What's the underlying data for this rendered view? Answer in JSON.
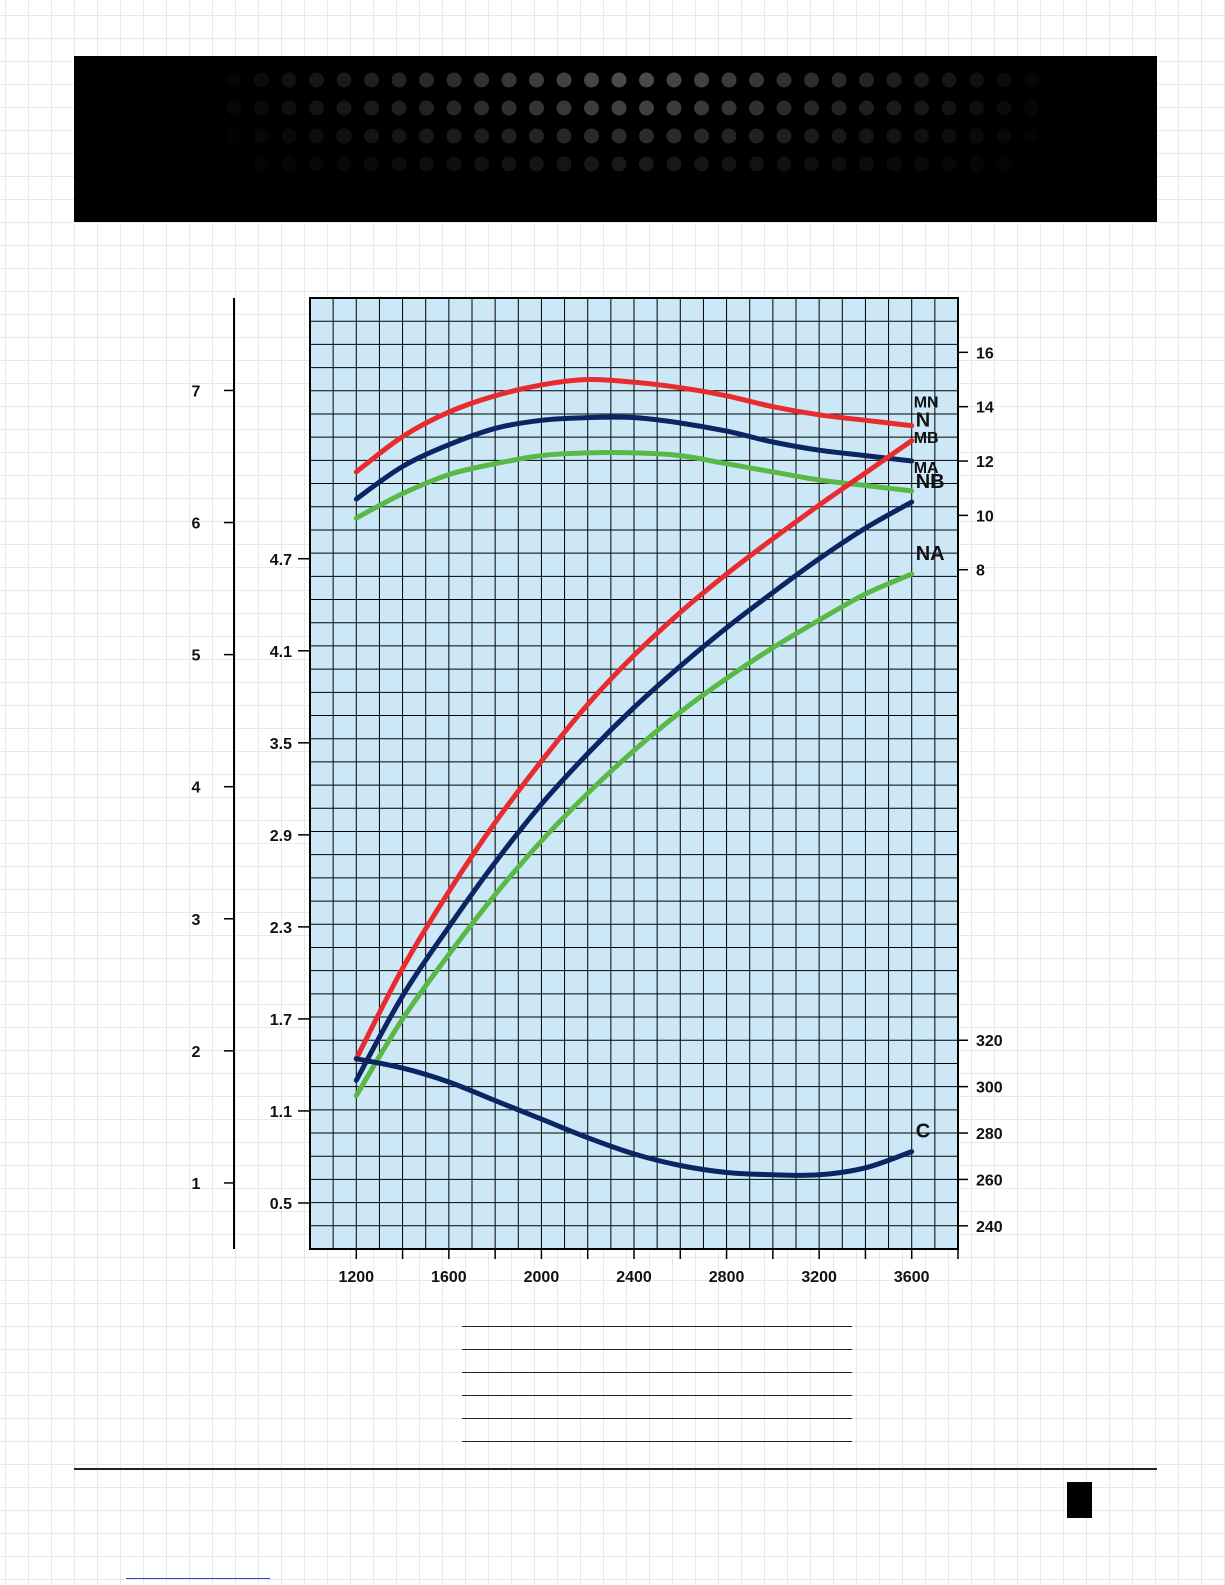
{
  "colors": {
    "red": "#e82b2e",
    "navy": "#0b2463",
    "green": "#58b947",
    "plot_background": "#cce8f7",
    "grid": "#000000"
  },
  "chart_data": {
    "type": "line",
    "title": "",
    "xlabel": "",
    "ylabel": "",
    "grid": true,
    "x_axis": {
      "range": [
        1000,
        3800
      ],
      "ticks": [
        1200,
        1600,
        2000,
        2400,
        2800,
        3200,
        3600
      ],
      "tick_labels": [
        "1200",
        "1600",
        "2000",
        "2400",
        "2800",
        "3200",
        "3600"
      ]
    },
    "axes": {
      "outer_left": {
        "range": [
          0.5,
          7.7
        ],
        "ticks": [
          1,
          2,
          3,
          4,
          5,
          6,
          7
        ],
        "tick_labels": [
          "1",
          "2",
          "3",
          "4",
          "5",
          "6",
          "7"
        ]
      },
      "inner_left": {
        "range": [
          0.2,
          6.4
        ],
        "ticks": [
          0.5,
          1.1,
          1.7,
          2.3,
          2.9,
          3.5,
          4.1,
          4.7
        ],
        "tick_labels": [
          "0.5",
          "1.1",
          "1.7",
          "2.3",
          "2.9",
          "3.5",
          "4.1",
          "4.7"
        ]
      },
      "right_torque": {
        "range": [
          -17,
          18
        ],
        "ticks": [
          8,
          10,
          12,
          14,
          16
        ],
        "tick_labels": [
          "8",
          "10",
          "12",
          "14",
          "16"
        ]
      },
      "right_consumption": {
        "range": [
          230,
          640
        ],
        "ticks": [
          240,
          260,
          280,
          300,
          320
        ],
        "tick_labels": [
          "240",
          "260",
          "280",
          "300",
          "320"
        ]
      }
    },
    "series": [
      {
        "name": "MN",
        "axis": "right_torque",
        "color": "#e82b2e",
        "label_size": "small",
        "x": [
          1200,
          1400,
          1600,
          1800,
          2000,
          2200,
          2400,
          2600,
          2800,
          3000,
          3200,
          3400,
          3600
        ],
        "values": [
          11.6,
          12.9,
          13.8,
          14.4,
          14.8,
          15.0,
          14.9,
          14.7,
          14.4,
          14.0,
          13.7,
          13.5,
          13.3
        ]
      },
      {
        "name": "MB",
        "axis": "right_torque",
        "color": "#0b2463",
        "label_size": "small",
        "x": [
          1200,
          1400,
          1600,
          1800,
          2000,
          2200,
          2400,
          2600,
          2800,
          3000,
          3200,
          3400,
          3600
        ],
        "values": [
          10.6,
          11.8,
          12.6,
          13.2,
          13.5,
          13.6,
          13.6,
          13.4,
          13.1,
          12.7,
          12.4,
          12.2,
          12.0
        ]
      },
      {
        "name": "MA",
        "axis": "right_torque",
        "color": "#58b947",
        "label_size": "small",
        "x": [
          1200,
          1400,
          1600,
          1800,
          2000,
          2200,
          2400,
          2600,
          2800,
          3000,
          3200,
          3400,
          3600
        ],
        "values": [
          9.9,
          10.8,
          11.5,
          11.9,
          12.2,
          12.3,
          12.3,
          12.2,
          11.9,
          11.6,
          11.3,
          11.1,
          10.9
        ]
      },
      {
        "name": "N",
        "axis": "inner_left",
        "color": "#e82b2e",
        "label_size": "large",
        "x": [
          1200,
          1400,
          1600,
          1800,
          2000,
          2200,
          2400,
          2600,
          2800,
          3000,
          3200,
          3400,
          3600
        ],
        "values": [
          1.44,
          2.03,
          2.53,
          2.98,
          3.38,
          3.75,
          4.07,
          4.35,
          4.6,
          4.83,
          5.05,
          5.26,
          5.47
        ]
      },
      {
        "name": "NB",
        "axis": "inner_left",
        "color": "#0b2463",
        "label_size": "large",
        "x": [
          1200,
          1400,
          1600,
          1800,
          2000,
          2200,
          2400,
          2600,
          2800,
          3000,
          3200,
          3400,
          3600
        ],
        "values": [
          1.3,
          1.85,
          2.3,
          2.72,
          3.1,
          3.43,
          3.73,
          4.0,
          4.25,
          4.48,
          4.7,
          4.9,
          5.07
        ]
      },
      {
        "name": "NA",
        "axis": "inner_left",
        "color": "#58b947",
        "label_size": "large",
        "x": [
          1200,
          1400,
          1600,
          1800,
          2000,
          2200,
          2400,
          2600,
          2800,
          3000,
          3200,
          3400,
          3600
        ],
        "values": [
          1.2,
          1.7,
          2.12,
          2.51,
          2.86,
          3.17,
          3.45,
          3.7,
          3.92,
          4.12,
          4.3,
          4.47,
          4.6
        ]
      },
      {
        "name": "C",
        "axis": "right_consumption",
        "color": "#0b2463",
        "label_size": "large",
        "x": [
          1200,
          1400,
          1600,
          1800,
          2000,
          2200,
          2400,
          2600,
          2800,
          3000,
          3200,
          3400,
          3600
        ],
        "values": [
          312,
          308,
          302,
          294,
          286,
          278,
          271,
          266,
          263,
          262,
          262,
          265,
          272
        ]
      }
    ]
  }
}
